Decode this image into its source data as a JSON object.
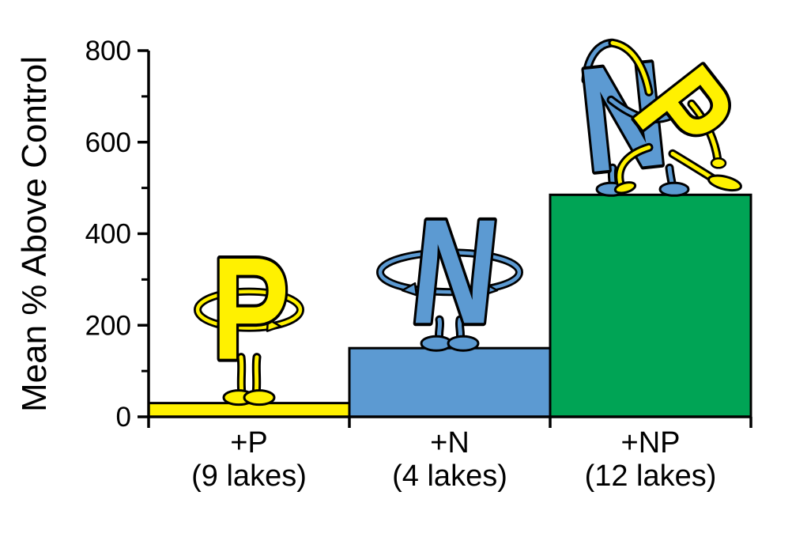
{
  "chart_data": {
    "type": "bar",
    "title": "",
    "ylabel": "Mean % Above Control",
    "xlabel": "",
    "ylim": [
      0,
      800
    ],
    "yticks_major": [
      0,
      200,
      400,
      600,
      800
    ],
    "yticks_minor": [
      100,
      300,
      500,
      700
    ],
    "categories": [
      "+P",
      "+N",
      "+NP"
    ],
    "sublabels": [
      "(9 lakes)",
      "(4 lakes)",
      "(12 lakes)"
    ],
    "values": [
      30,
      150,
      485
    ],
    "bar_colors": [
      "#FFF100",
      "#5C9AD2",
      "#00A455"
    ],
    "grid": false,
    "legend": "none",
    "background": "#FFFFFF",
    "axis_color": "#000000"
  },
  "figure": {
    "characters": [
      {
        "letter": "P",
        "color": "#FFF100",
        "pose": "standing with arms akimbo",
        "on_bar": "+P"
      },
      {
        "letter": "N",
        "color": "#5C9AD2",
        "pose": "standing with arms akimbo",
        "on_bar": "+N"
      },
      {
        "letter_n": "N",
        "letter_p": "P",
        "colors": [
          "#5C9AD2",
          "#FFF100"
        ],
        "pose": "dancing tango dip together",
        "on_bar": "+NP"
      }
    ]
  }
}
